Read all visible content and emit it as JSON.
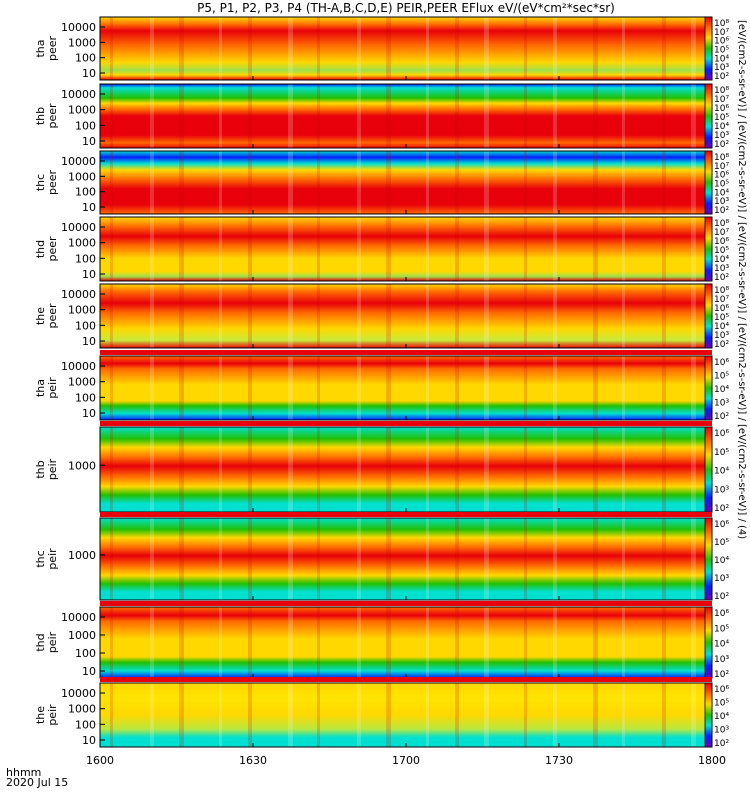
{
  "title": "P5, P1, P2, P3, P4 (TH-A,B,C,D,E) PEIR,PEER EFlux eV/(eV*cm²*sec*sr)",
  "footer": {
    "time_label": "hhmm",
    "date": "2020 Jul 15"
  },
  "colorbar_unit_label": "[eV/(cm2-s-sr-eV)] / [eV/(cm2-s-sr-eV)] / [eV/(cm2-s-sr-eV)] / [eV/(cm2-s-sr-eV)] / [eV/(cm2-s-sr-eV)] / (4)",
  "colors": {
    "red": "#e8000b",
    "orange": "#ff6a00",
    "yellow": "#ffd800",
    "green": "#22c000",
    "cyan": "#00e0d0",
    "blue": "#0020ff",
    "purple": "#7000b0"
  },
  "chart_data": {
    "type": "heatmap",
    "title": "P5, P1, P2, P3, P4 (TH-A,B,C,D,E) PEIR,PEER EFlux eV/(eV*cm²*sec*sr)",
    "x_tick_labels": [
      "1600",
      "1630",
      "1700",
      "1730",
      "1800"
    ],
    "x_range": [
      "1600",
      "1800"
    ],
    "panels": [
      {
        "name": "tha peer",
        "label_lines": [
          "tha",
          "peer"
        ],
        "y_ticks": [
          "10000",
          "1000",
          "100",
          "10"
        ],
        "cb_ticks": [
          "10⁸",
          "10⁷",
          "10⁶",
          "10⁵",
          "10⁴",
          "10³",
          "10²"
        ],
        "profile": "peer_a"
      },
      {
        "name": "thb peer",
        "label_lines": [
          "thb",
          "peer"
        ],
        "y_ticks": [
          "10000",
          "1000",
          "100",
          "10"
        ],
        "cb_ticks": [
          "10⁸",
          "10⁷",
          "10⁶",
          "10⁵",
          "10⁴",
          "10³",
          "10²"
        ],
        "profile": "peer_b"
      },
      {
        "name": "thc peer",
        "label_lines": [
          "thc",
          "peer"
        ],
        "y_ticks": [
          "10000",
          "1000",
          "100",
          "10"
        ],
        "cb_ticks": [
          "10⁸",
          "10⁷",
          "10⁶",
          "10⁵",
          "10⁴",
          "10³",
          "10²"
        ],
        "profile": "peer_c"
      },
      {
        "name": "thd peer",
        "label_lines": [
          "thd",
          "peer"
        ],
        "y_ticks": [
          "10000",
          "1000",
          "100",
          "10"
        ],
        "cb_ticks": [
          "10⁸",
          "10⁷",
          "10⁶",
          "10⁵",
          "10⁴",
          "10³",
          "10²"
        ],
        "profile": "peer_d"
      },
      {
        "name": "the peer",
        "label_lines": [
          "the",
          "peer"
        ],
        "y_ticks": [
          "10000",
          "1000",
          "100",
          "10"
        ],
        "cb_ticks": [
          "10⁸",
          "10⁷",
          "10⁶",
          "10⁵",
          "10⁴",
          "10³",
          "10²"
        ],
        "profile": "peer_e"
      },
      {
        "name": "tha peir",
        "label_lines": [
          "tha",
          "peir"
        ],
        "y_ticks": [
          "10000",
          "1000",
          "100",
          "10"
        ],
        "cb_ticks": [
          "10⁶",
          "10⁵",
          "10⁴",
          "10³",
          "10²"
        ],
        "profile": "peir"
      },
      {
        "name": "thb peir",
        "label_lines": [
          "thb",
          "peir"
        ],
        "y_ticks": [
          "1000"
        ],
        "cb_ticks": [
          "10⁶",
          "10⁵",
          "10⁴",
          "10³",
          "10²"
        ],
        "profile": "peir_band"
      },
      {
        "name": "thc peir",
        "label_lines": [
          "thc",
          "peir"
        ],
        "y_ticks": [
          "1000"
        ],
        "cb_ticks": [
          "10⁶",
          "10⁵",
          "10⁴",
          "10³",
          "10²"
        ],
        "profile": "peir_band"
      },
      {
        "name": "thd peir",
        "label_lines": [
          "thd",
          "peir"
        ],
        "y_ticks": [
          "10000",
          "1000",
          "100",
          "10"
        ],
        "cb_ticks": [
          "10⁶",
          "10⁵",
          "10⁴",
          "10³",
          "10²"
        ],
        "profile": "peir"
      },
      {
        "name": "the peir",
        "label_lines": [
          "the",
          "peir"
        ],
        "y_ticks": [
          "10000",
          "1000",
          "100",
          "10"
        ],
        "cb_ticks": [
          "10⁶",
          "10⁵",
          "10⁴",
          "10³",
          "10²"
        ],
        "profile": "peir_e"
      }
    ]
  }
}
